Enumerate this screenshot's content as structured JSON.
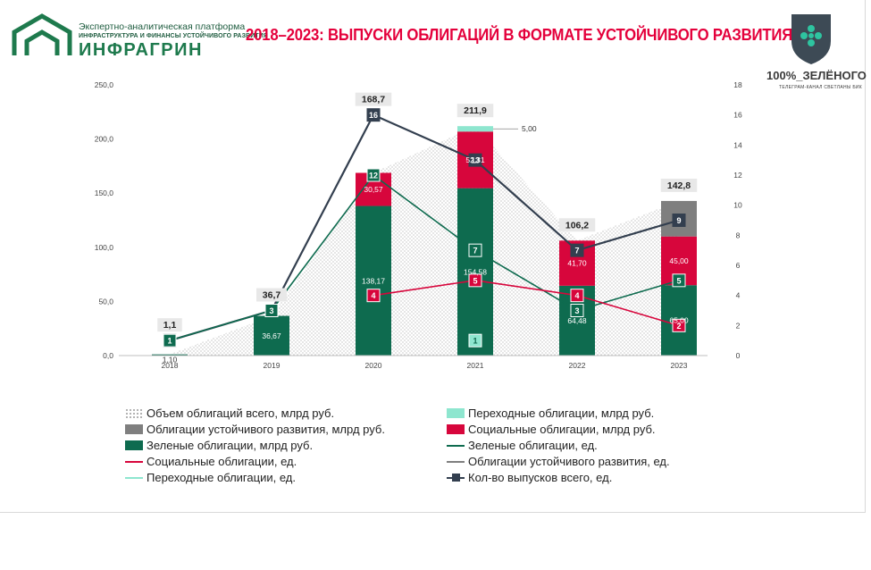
{
  "brand": {
    "subtitle": "Экспертно-аналитическая платформа",
    "subtitle2": "ИНФРАСТРУКТУРА И ФИНАНСЫ УСТОЙЧИВОГО РАЗВИТИЯ",
    "name": "ИНФРАГРИН",
    "green_label": "100%_ЗЕЛЁНОГО",
    "green_sub": "ТЕЛЕГРАМ-КАНАЛ СВЕТЛАНЫ БИК"
  },
  "page_title": "2018–2023: ВЫПУСКИ ОБЛИГАЦИЙ В ФОРМАТЕ УСТОЙЧИВОГО РАЗВИТИЯ",
  "colors": {
    "green": "#0e6b4f",
    "social": "#d7063c",
    "sustainable": "#7f7f7f",
    "transition": "#8ee6cf",
    "total_line": "#333f4f",
    "area": "#bdbdbd",
    "title": "#e4003b"
  },
  "chart_data": {
    "type": "bar",
    "categories": [
      "2018",
      "2019",
      "2020",
      "2021",
      "2022",
      "2023"
    ],
    "y_left_ticks": [
      "0,0",
      "50,0",
      "100,0",
      "150,0",
      "200,0",
      "250,0"
    ],
    "y_right_ticks": [
      "0",
      "2",
      "4",
      "6",
      "8",
      "10",
      "12",
      "14",
      "16",
      "18"
    ],
    "ylim_left": [
      0,
      250
    ],
    "ylim_right": [
      0,
      18
    ],
    "grid": false,
    "legend_position": "bottom",
    "bar_series": [
      {
        "name": "Зеленые облигации, млрд руб.",
        "values": [
          1.1,
          36.67,
          138.17,
          154.58,
          64.48,
          65.0
        ],
        "labels": [
          "1,10",
          "36,67",
          "138,17",
          "154,58",
          "64,48",
          "65,00"
        ]
      },
      {
        "name": "Социальные облигации, млрд руб.",
        "values": [
          0,
          0,
          30.57,
          52.31,
          41.7,
          45.0
        ],
        "labels": [
          "",
          "",
          "30,57",
          "52,31",
          "41,70",
          "45,00"
        ]
      },
      {
        "name": "Облигации устойчивого развития, млрд руб.",
        "values": [
          0,
          0,
          0,
          0,
          0,
          32.8
        ],
        "labels": [
          "",
          "",
          "",
          "",
          "",
          ""
        ]
      },
      {
        "name": "Переходные облигации, млрд руб.",
        "values": [
          0,
          0,
          0,
          5.0,
          0,
          0
        ],
        "labels": [
          "",
          "",
          "",
          "5,00",
          "",
          ""
        ]
      }
    ],
    "area_series": {
      "name": "Объем облигаций всего, млрд руб.",
      "values": [
        1.1,
        36.7,
        168.7,
        211.9,
        106.2,
        142.8
      ]
    },
    "total_labels": [
      "1,1",
      "36,7",
      "168,7",
      "211,9",
      "106,2",
      "142,8"
    ],
    "line_series": [
      {
        "name": "Кол-во выпусков всего, ед.",
        "values": [
          1,
          3,
          16,
          13,
          7,
          9
        ]
      },
      {
        "name": "Зеленые облигации, ед.",
        "values": [
          1,
          3,
          12,
          7,
          3,
          5
        ]
      },
      {
        "name": "Социальные облигации, ед.",
        "values": [
          null,
          null,
          4,
          5,
          4,
          2
        ]
      },
      {
        "name": "Переходные облигации, ед.",
        "values": [
          null,
          null,
          null,
          1,
          null,
          null
        ]
      },
      {
        "name": "Облигации устойчивого развития, ед.",
        "values": [
          null,
          null,
          null,
          null,
          null,
          null
        ]
      }
    ]
  },
  "legend": [
    {
      "label": "Объем облигаций всего, млрд руб.",
      "kind": "dots"
    },
    {
      "label": "Переходные облигации, млрд руб.",
      "kind": "box",
      "color": "#8ee6cf"
    },
    {
      "label": "Облигации устойчивого развития, млрд руб.",
      "kind": "box",
      "color": "#7f7f7f"
    },
    {
      "label": "Социальные облигации, млрд руб.",
      "kind": "box",
      "color": "#d7063c"
    },
    {
      "label": "Зеленые облигации, млрд руб.",
      "kind": "box",
      "color": "#0e6b4f"
    },
    {
      "label": "Зеленые облигации, ед.",
      "kind": "line",
      "color": "#0e6b4f"
    },
    {
      "label": "Социальные облигации, ед.",
      "kind": "line",
      "color": "#d7063c"
    },
    {
      "label": "Облигации устойчивого развития, ед.",
      "kind": "line",
      "color": "#7f7f7f"
    },
    {
      "label": "Переходные облигации, ед.",
      "kind": "line",
      "color": "#8ee6cf"
    },
    {
      "label": "Кол-во выпусков всего, ед.",
      "kind": "linemarker",
      "color": "#333f4f"
    }
  ]
}
